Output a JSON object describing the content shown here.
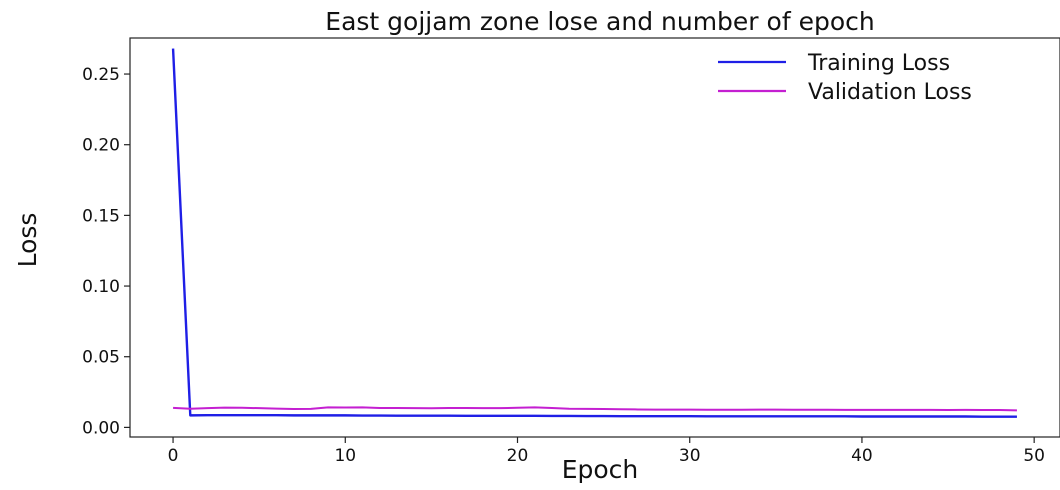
{
  "chart_data": {
    "type": "line",
    "title": "East gojjam zone lose and number of epoch",
    "xlabel": "Epoch",
    "ylabel": "Loss",
    "xlim": [
      -2.5,
      51.5
    ],
    "ylim": [
      -0.0068,
      0.2755
    ],
    "xticks": [
      0,
      10,
      20,
      30,
      40,
      50
    ],
    "xtick_labels": [
      "0",
      "10",
      "20",
      "30",
      "40",
      "50"
    ],
    "yticks": [
      0.0,
      0.05,
      0.1,
      0.15,
      0.2,
      0.25
    ],
    "ytick_labels": [
      "0.00",
      "0.05",
      "0.10",
      "0.15",
      "0.20",
      "0.25"
    ],
    "grid": false,
    "legend": "top-right",
    "x": [
      0,
      1,
      2,
      3,
      4,
      5,
      6,
      7,
      8,
      9,
      10,
      11,
      12,
      13,
      14,
      15,
      16,
      17,
      18,
      19,
      20,
      21,
      22,
      23,
      24,
      25,
      26,
      27,
      28,
      29,
      30,
      31,
      32,
      33,
      34,
      35,
      36,
      37,
      38,
      39,
      40,
      41,
      42,
      43,
      44,
      45,
      46,
      47,
      48,
      49
    ],
    "series": [
      {
        "name": "Training Loss",
        "color": "#1f1fe6",
        "values": [
          0.268,
          0.0085,
          0.0086,
          0.0086,
          0.0086,
          0.0086,
          0.0086,
          0.0085,
          0.0085,
          0.0085,
          0.0085,
          0.0084,
          0.0084,
          0.0083,
          0.0083,
          0.0083,
          0.0083,
          0.0082,
          0.0082,
          0.0082,
          0.0082,
          0.0082,
          0.0081,
          0.0081,
          0.008,
          0.008,
          0.0079,
          0.0079,
          0.0079,
          0.0079,
          0.0079,
          0.0078,
          0.0078,
          0.0078,
          0.0078,
          0.0078,
          0.0078,
          0.0078,
          0.0078,
          0.0078,
          0.0077,
          0.0077,
          0.0077,
          0.0077,
          0.0077,
          0.0077,
          0.0077,
          0.0076,
          0.0076,
          0.0076
        ]
      },
      {
        "name": "Validation Loss",
        "color": "#c41fd1",
        "values": [
          0.0138,
          0.0132,
          0.0136,
          0.014,
          0.0139,
          0.0136,
          0.0133,
          0.013,
          0.0131,
          0.0142,
          0.0141,
          0.0142,
          0.0137,
          0.0137,
          0.0136,
          0.0135,
          0.0137,
          0.0137,
          0.0136,
          0.0136,
          0.0139,
          0.0142,
          0.0137,
          0.0132,
          0.0131,
          0.013,
          0.0128,
          0.0127,
          0.0126,
          0.0126,
          0.0126,
          0.0125,
          0.0125,
          0.0125,
          0.0126,
          0.0126,
          0.0125,
          0.0125,
          0.0125,
          0.0124,
          0.0124,
          0.0124,
          0.0124,
          0.0124,
          0.0124,
          0.0123,
          0.0124,
          0.0123,
          0.0123,
          0.012
        ]
      }
    ]
  }
}
